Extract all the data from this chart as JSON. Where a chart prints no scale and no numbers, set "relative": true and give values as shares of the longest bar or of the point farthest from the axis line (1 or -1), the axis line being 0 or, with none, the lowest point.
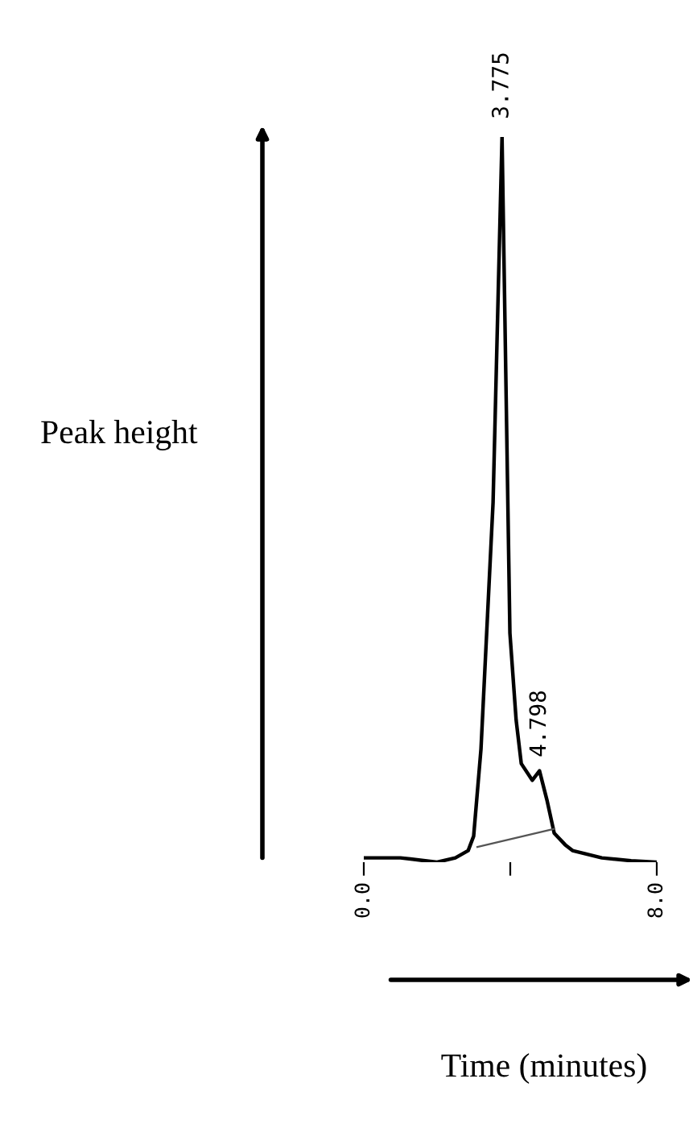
{
  "chart_data": {
    "type": "line",
    "relative": true,
    "xlabel": "Time (minutes)",
    "ylabel": "Peak height",
    "xlim": [
      0,
      8
    ],
    "xticks": [
      {
        "value": 0,
        "label": "0.0"
      },
      {
        "value": 4,
        "label": null
      },
      {
        "value": 8,
        "label": "8.0"
      }
    ],
    "series": [
      {
        "color": "#000000",
        "x": [
          0,
          1,
          2,
          2.5,
          2.85,
          3.0,
          3.2,
          3.53,
          3.775,
          3.99,
          4.16,
          4.3,
          4.6,
          4.798,
          5.0,
          5.2,
          5.5,
          5.7,
          6.5,
          7.3,
          8.0
        ],
        "values": [
          0.006,
          0.006,
          0.0,
          0.006,
          0.016,
          0.036,
          0.156,
          0.496,
          1.0,
          0.316,
          0.196,
          0.136,
          0.113,
          0.126,
          0.086,
          0.04,
          0.024,
          0.016,
          0.006,
          0.002,
          0.0
        ]
      },
      {
        "color": "#555555",
        "x": [
          3.1,
          5.2
        ],
        "values": [
          0.021,
          0.046
        ]
      }
    ],
    "annotations": [
      {
        "text": "3.775",
        "x": 3.775,
        "y": 1.0
      },
      {
        "text": "4.798",
        "x": 4.798,
        "y": 0.12
      }
    ]
  }
}
